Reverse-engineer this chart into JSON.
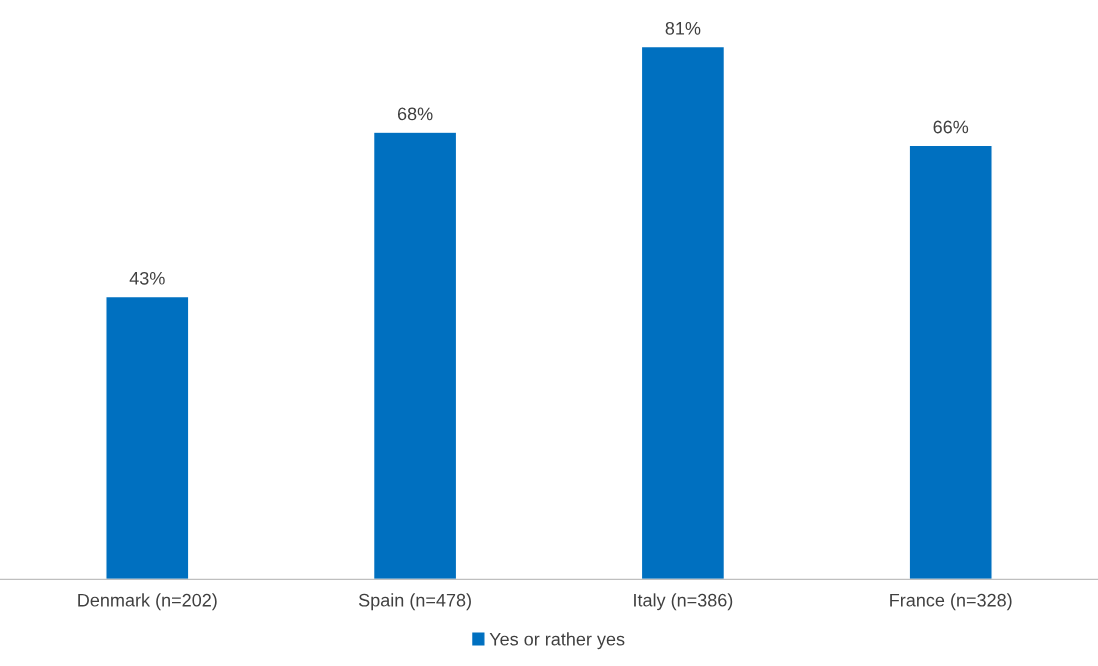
{
  "chart_data": {
    "type": "bar",
    "categories": [
      "Denmark (n=202)",
      "Spain (n=478)",
      "Italy (n=386)",
      "France (n=328)"
    ],
    "series": [
      {
        "name": "Yes or rather yes",
        "color": "#0070c0",
        "values": [
          43,
          68,
          81,
          66
        ],
        "value_labels": [
          "43%",
          "68%",
          "81%",
          "66%"
        ]
      }
    ],
    "grid": false,
    "legend": "bottom"
  }
}
